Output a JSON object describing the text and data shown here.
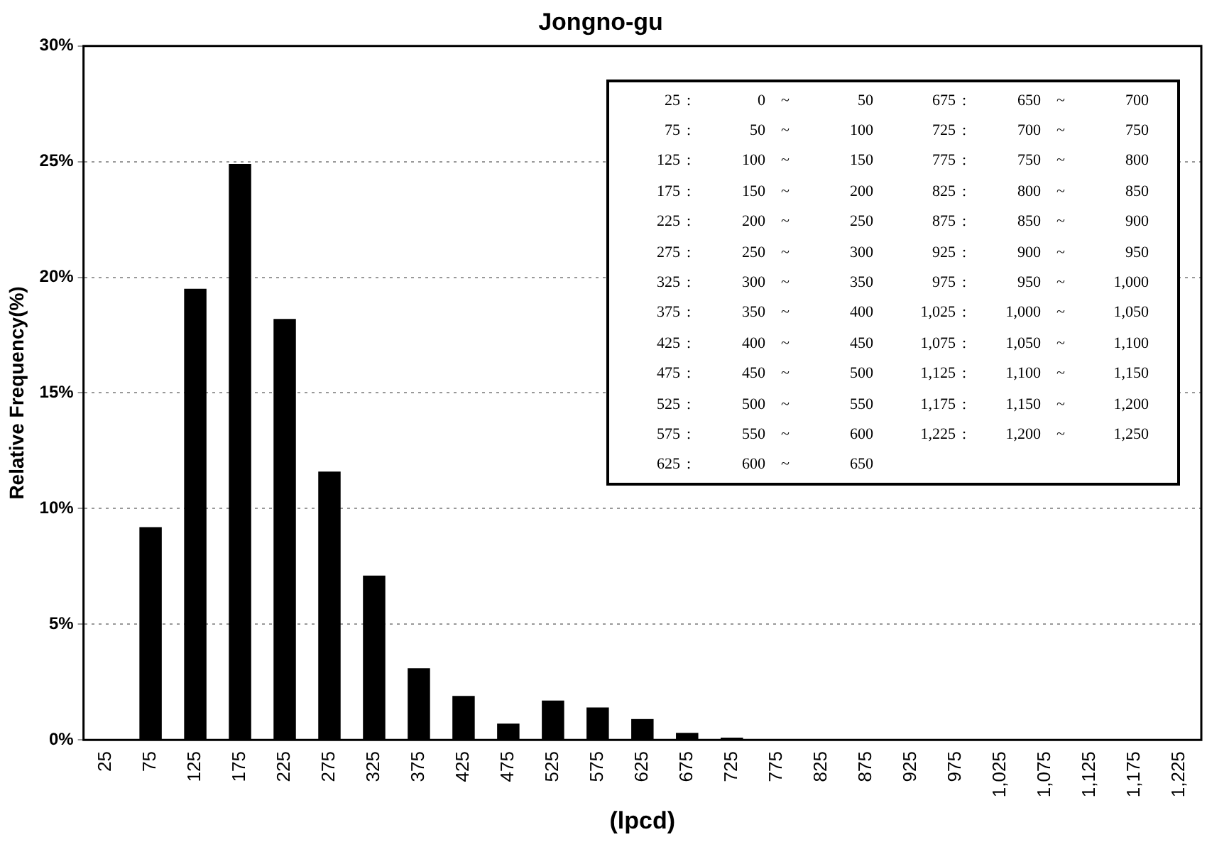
{
  "chart_data": {
    "type": "bar",
    "title": "Jongno-gu",
    "xlabel": "(lpcd)",
    "ylabel": "Relative Frequency(%)",
    "categories": [
      "25",
      "75",
      "125",
      "175",
      "225",
      "275",
      "325",
      "375",
      "425",
      "475",
      "525",
      "575",
      "625",
      "675",
      "725",
      "775",
      "825",
      "875",
      "925",
      "975",
      "1,025",
      "1,075",
      "1,125",
      "1,175",
      "1,225"
    ],
    "values": [
      0,
      9.2,
      19.5,
      24.9,
      18.2,
      11.6,
      7.1,
      3.1,
      1.9,
      0.7,
      1.7,
      1.4,
      0.9,
      0.3,
      0.1,
      0,
      0,
      0,
      0,
      0,
      0,
      0,
      0,
      0,
      0
    ],
    "color": "#000000",
    "ylim": [
      0,
      30
    ],
    "yticks": [
      {
        "value": 0,
        "label": "0%"
      },
      {
        "value": 5,
        "label": "5%"
      },
      {
        "value": 10,
        "label": "10%"
      },
      {
        "value": 15,
        "label": "15%"
      },
      {
        "value": 20,
        "label": "20%"
      },
      {
        "value": 25,
        "label": "25%"
      },
      {
        "value": 30,
        "label": "30%"
      }
    ],
    "grid": "y",
    "legend": false,
    "annotations": [
      "25 : 0 ~ 50",
      "75 : 50 ~ 100",
      "125 : 100 ~ 150",
      "175 : 150 ~ 200",
      "225 : 200 ~ 250",
      "275 : 250 ~ 300",
      "325 : 300 ~ 350",
      "375 : 350 ~ 400",
      "425 : 400 ~ 450",
      "475 : 450 ~ 500",
      "525 : 500 ~ 550",
      "575 : 550 ~ 600",
      "625 : 600 ~ 650",
      "675 : 650 ~ 700",
      "725 : 700 ~ 750",
      "775 : 750 ~ 800",
      "825 : 800 ~ 850",
      "875 : 850 ~ 900",
      "925 : 900 ~ 950",
      "975 : 950 ~ 1,000",
      "1,025 : 1,000 ~ 1,050",
      "1,075 : 1,050 ~ 1,100",
      "1,125 : 1,100 ~ 1,150",
      "1,175 : 1,150 ~ 1,200",
      "1,225 : 1,200 ~ 1,250"
    ]
  }
}
